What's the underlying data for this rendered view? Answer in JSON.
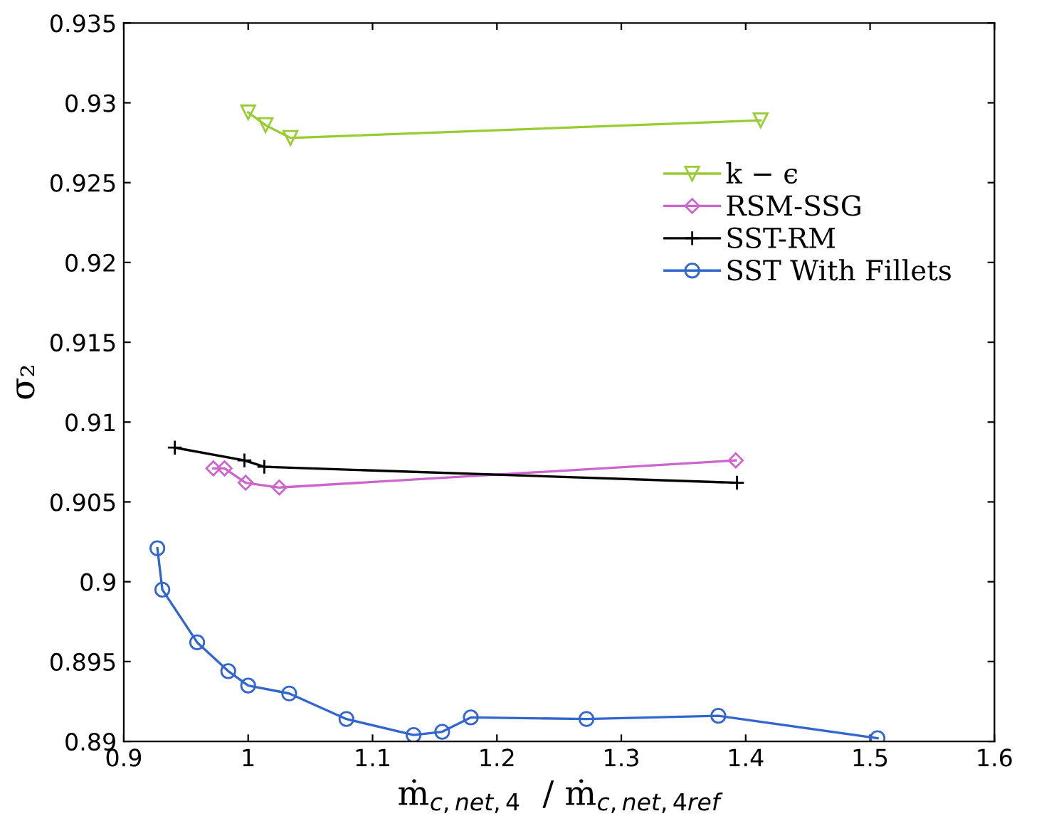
{
  "chart_data": {
    "type": "line",
    "xlabel": "ṁ$_{c,net,4}$  / ṁ$_{c,net,4ref}$",
    "ylabel": "σ₂",
    "xlim": [
      0.9,
      1.6
    ],
    "xticks": [
      0.9,
      1,
      1.1,
      1.2,
      1.3,
      1.4,
      1.5,
      1.6
    ],
    "ylim": [
      0.89,
      0.935
    ],
    "yticks": [
      0.89,
      0.895,
      0.9,
      0.905,
      0.91,
      0.915,
      0.92,
      0.925,
      0.93,
      0.935
    ],
    "grid": false,
    "legend": "right",
    "line_style": "solid",
    "series": [
      {
        "name": "k − ϵ",
        "color": "#99cc33",
        "marker": "triangle",
        "x": [
          1.0,
          1.014,
          1.034,
          1.412
        ],
        "values": [
          0.9294,
          0.9286,
          0.9278,
          0.9289
        ]
      },
      {
        "name": "RSM-SSG",
        "color": "#cc66cc",
        "marker": "diamond",
        "x": [
          0.972,
          0.981,
          0.998,
          1.025,
          1.392
        ],
        "values": [
          0.9071,
          0.9071,
          0.9062,
          0.9059,
          0.9076
        ]
      },
      {
        "name": "SST-RM",
        "color": "#000000",
        "marker": "cross",
        "x": [
          0.941,
          0.997,
          1.013,
          1.393
        ],
        "values": [
          0.9084,
          0.9076,
          0.9072,
          0.9062
        ]
      },
      {
        "name": "SST With Fillets",
        "color": "#3366cc",
        "marker": "circle",
        "x": [
          0.927,
          0.931,
          0.959,
          0.984,
          1.0,
          1.033,
          1.079,
          1.133,
          1.156,
          1.179,
          1.272,
          1.378,
          1.506
        ],
        "values": [
          0.9021,
          0.8995,
          0.8962,
          0.8944,
          0.8935,
          0.893,
          0.8914,
          0.8904,
          0.8906,
          0.8915,
          0.8914,
          0.8916,
          0.8902
        ]
      }
    ]
  }
}
